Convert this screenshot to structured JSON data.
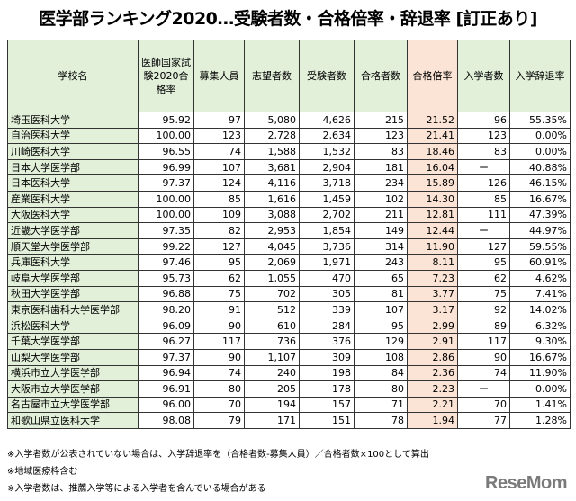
{
  "title": "医学部ランキング2020…受験者数・合格倍率・辞退率 [訂正あり]",
  "columns": [
    "学校名",
    "医師国家試験2020合格率",
    "募集人員",
    "志望者数",
    "受験者数",
    "合格者数",
    "合格倍率",
    "入学者数",
    "入学辞退率"
  ],
  "rows": [
    [
      "埼玉医科大学",
      "95.92",
      "97",
      "5,080",
      "4,626",
      "215",
      "21.52",
      "96",
      "55.35%"
    ],
    [
      "自治医科大学",
      "100.00",
      "123",
      "2,728",
      "2,634",
      "123",
      "21.41",
      "123",
      "0.00%"
    ],
    [
      "川崎医科大学",
      "96.55",
      "74",
      "1,588",
      "1,532",
      "83",
      "18.46",
      "83",
      "0.00%"
    ],
    [
      "日本大学医学部",
      "96.99",
      "107",
      "3,681",
      "2,904",
      "181",
      "16.04",
      "ー",
      "40.88%"
    ],
    [
      "日本医科大学",
      "97.37",
      "124",
      "4,116",
      "3,718",
      "234",
      "15.89",
      "126",
      "46.15%"
    ],
    [
      "産業医科大学",
      "100.00",
      "85",
      "1,616",
      "1,459",
      "102",
      "14.30",
      "85",
      "16.67%"
    ],
    [
      "大阪医科大学",
      "100.00",
      "109",
      "3,088",
      "2,702",
      "211",
      "12.81",
      "111",
      "47.39%"
    ],
    [
      "近畿大学医学部",
      "97.35",
      "82",
      "2,953",
      "1,854",
      "149",
      "12.44",
      "ー",
      "44.97%"
    ],
    [
      "順天堂大学医学部",
      "99.22",
      "127",
      "4,045",
      "3,736",
      "314",
      "11.90",
      "127",
      "59.55%"
    ],
    [
      "兵庫医科大学",
      "97.46",
      "95",
      "2,069",
      "1,971",
      "243",
      "8.11",
      "95",
      "60.91%"
    ],
    [
      "岐阜大学医学部",
      "95.73",
      "62",
      "1,055",
      "470",
      "65",
      "7.23",
      "62",
      "4.62%"
    ],
    [
      "秋田大学医学部",
      "96.88",
      "75",
      "702",
      "305",
      "81",
      "3.77",
      "75",
      "7.41%"
    ],
    [
      "東京医科歯科大学医学部",
      "98.20",
      "91",
      "512",
      "339",
      "107",
      "3.17",
      "92",
      "14.02%"
    ],
    [
      "浜松医科大学",
      "96.09",
      "90",
      "610",
      "284",
      "95",
      "2.99",
      "89",
      "6.32%"
    ],
    [
      "千葉大学医学部",
      "96.27",
      "117",
      "736",
      "376",
      "129",
      "2.91",
      "117",
      "9.30%"
    ],
    [
      "山梨大学医学部",
      "97.37",
      "90",
      "1,107",
      "309",
      "108",
      "2.86",
      "90",
      "16.67%"
    ],
    [
      "横浜市立大学医学部",
      "96.94",
      "74",
      "240",
      "198",
      "84",
      "2.36",
      "74",
      "11.90%"
    ],
    [
      "大阪市立大学医学部",
      "96.91",
      "80",
      "205",
      "178",
      "80",
      "2.23",
      "ー",
      "0.00%"
    ],
    [
      "名古屋市立大学医学部",
      "96.00",
      "70",
      "194",
      "157",
      "71",
      "2.21",
      "70",
      "1.41%"
    ],
    [
      "和歌山県立医科大学",
      "98.08",
      "79",
      "171",
      "151",
      "78",
      "1.94",
      "77",
      "1.28%"
    ]
  ],
  "notes": [
    "※入学者数が公表されていない場合は、入学辞退率を（合格者数-募集人員）／合格者数×100として算出",
    "※地域医療枠含む",
    "※入学者数は、推薦入学等による入学者を含んでいる場合がある"
  ],
  "logo": "ReseMom"
}
